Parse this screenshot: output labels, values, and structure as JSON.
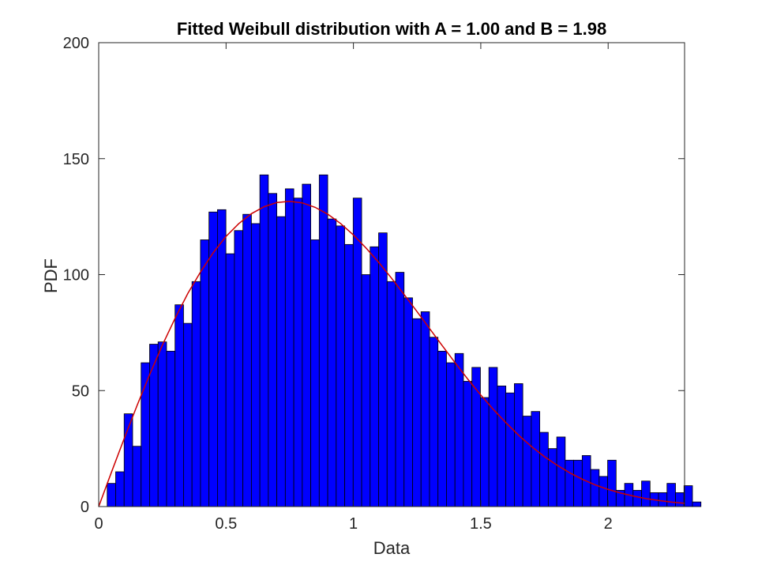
{
  "chart_data": {
    "type": "bar",
    "title": "Fitted Weibull distribution with A = 1.00 and B = 1.98",
    "xlabel": "Data",
    "ylabel": "PDF",
    "xlim": [
      0,
      2.3
    ],
    "ylim": [
      0,
      200
    ],
    "xticks": [
      0,
      0.5,
      1,
      1.5,
      2
    ],
    "xtick_labels": [
      "0",
      "0.5",
      "1",
      "1.5",
      "2"
    ],
    "yticks": [
      0,
      50,
      100,
      150,
      200
    ],
    "ytick_labels": [
      "0",
      "50",
      "100",
      "150",
      "200"
    ],
    "grid": false,
    "bin_start": 0.0,
    "bin_width": 0.0333,
    "counts": [
      0,
      10,
      15,
      40,
      26,
      62,
      70,
      71,
      67,
      87,
      79,
      97,
      115,
      127,
      128,
      109,
      119,
      126,
      122,
      143,
      135,
      125,
      137,
      133,
      139,
      115,
      143,
      124,
      121,
      113,
      133,
      100,
      112,
      118,
      97,
      101,
      90,
      81,
      84,
      73,
      67,
      62,
      66,
      54,
      60,
      47,
      60,
      52,
      49,
      53,
      39,
      41,
      32,
      25,
      30,
      20,
      20,
      22,
      16,
      13,
      20,
      7,
      10,
      7,
      11,
      6,
      6,
      10,
      6,
      9,
      2
    ],
    "fit_curve": {
      "name": "Weibull fit",
      "x": [
        0,
        0.05,
        0.1,
        0.15,
        0.2,
        0.25,
        0.3,
        0.35,
        0.4,
        0.45,
        0.5,
        0.55,
        0.6,
        0.65,
        0.7,
        0.75,
        0.8,
        0.85,
        0.9,
        0.95,
        1.0,
        1.05,
        1.1,
        1.15,
        1.2,
        1.25,
        1.3,
        1.35,
        1.4,
        1.45,
        1.5,
        1.55,
        1.6,
        1.65,
        1.7,
        1.75,
        1.8,
        1.85,
        1.9,
        1.95,
        2.0,
        2.05,
        2.1,
        2.15,
        2.2,
        2.25,
        2.3
      ],
      "y": [
        0,
        14.8,
        29.3,
        43.4,
        56.9,
        69.6,
        81.2,
        91.9,
        101.2,
        109.5,
        116.5,
        122.0,
        126.3,
        129.3,
        131.1,
        131.6,
        130.9,
        129.0,
        126.0,
        122.0,
        117.1,
        111.4,
        105.2,
        98.4,
        91.3,
        84.0,
        76.6,
        69.2,
        61.9,
        54.8,
        48.1,
        41.8,
        36.0,
        30.6,
        25.8,
        21.5,
        17.8,
        14.5,
        11.7,
        9.3,
        7.4,
        5.8,
        4.5,
        3.4,
        2.6,
        1.9,
        1.4
      ]
    },
    "colors": {
      "bars": "#0000ff",
      "bar_edge": "#000000",
      "curve": "#cc0000",
      "axes": "#262626"
    }
  }
}
